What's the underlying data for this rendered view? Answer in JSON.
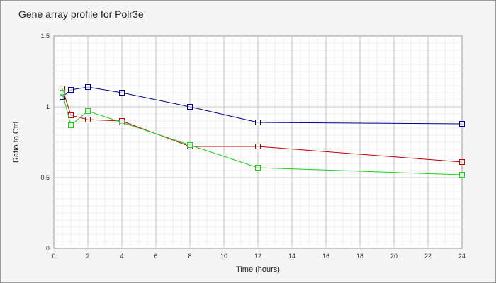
{
  "chart_data": {
    "type": "line",
    "title": "Gene array profile for Polr3e",
    "xlabel": "Time (hours)",
    "ylabel": "Ratio to Ctrl",
    "xlim": [
      0,
      24
    ],
    "ylim": [
      0,
      1.5
    ],
    "x_ticks": [
      0,
      2,
      4,
      6,
      8,
      10,
      12,
      14,
      16,
      18,
      20,
      22,
      24
    ],
    "y_ticks": [
      0,
      0.5,
      1,
      1.5
    ],
    "y_tick_labels": [
      "0",
      "0.5",
      "1",
      "1.5"
    ],
    "grid": true,
    "series": [
      {
        "color": "#00008b",
        "x": [
          0.5,
          1,
          2,
          4,
          8,
          12,
          24
        ],
        "y": [
          1.07,
          1.12,
          1.14,
          1.1,
          1.0,
          0.89,
          0.88
        ]
      },
      {
        "color": "#c00000",
        "x": [
          0.5,
          1,
          2,
          4,
          8,
          12,
          24
        ],
        "y": [
          1.13,
          0.94,
          0.91,
          0.9,
          0.72,
          0.72,
          0.61
        ]
      },
      {
        "color": "#22cc22",
        "x": [
          0.5,
          1,
          2,
          4,
          8,
          12,
          24
        ],
        "y": [
          1.1,
          0.87,
          0.97,
          0.89,
          0.73,
          0.57,
          0.52
        ]
      }
    ]
  }
}
